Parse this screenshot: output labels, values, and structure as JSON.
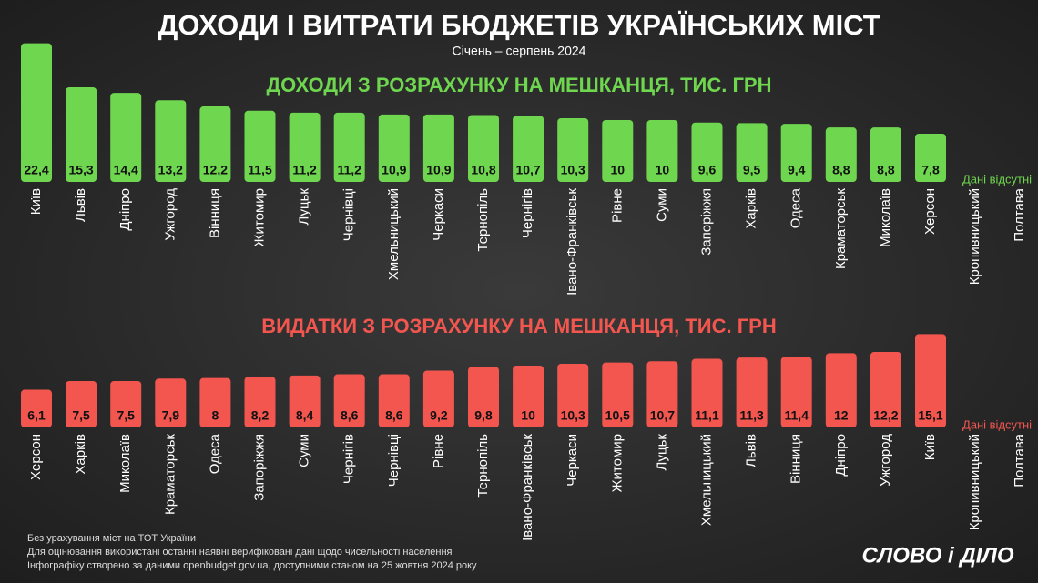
{
  "header": {
    "title": "ДОХОДИ І ВИТРАТИ БЮДЖЕТІВ УКРАЇНСЬКИХ МІСТ",
    "subtitle": "Січень – серпень 2024"
  },
  "chart_data": [
    {
      "type": "bar",
      "title": "ДОХОДИ З РОЗРАХУНКУ НА МЕШКАНЦЯ, ТИС. ГРН",
      "color": "#6fd64f",
      "categories": [
        "Київ",
        "Львів",
        "Дніпро",
        "Ужгород",
        "Вінниця",
        "Житомир",
        "Луцьк",
        "Чернівці",
        "Хмельницький",
        "Черкаси",
        "Тернопіль",
        "Чернігів",
        "Івано-Франківськ",
        "Рівне",
        "Суми",
        "Запоріжжя",
        "Харків",
        "Одеса",
        "Краматорськ",
        "Миколаїв",
        "Херсон",
        "Кропивницький",
        "Полтава"
      ],
      "values": [
        22.4,
        15.3,
        14.4,
        13.2,
        12.2,
        11.5,
        11.2,
        11.2,
        10.9,
        10.9,
        10.8,
        10.7,
        10.3,
        10,
        10,
        9.6,
        9.5,
        9.4,
        8.8,
        8.8,
        7.8,
        null,
        null
      ],
      "value_labels": [
        "22,4",
        "15,3",
        "14,4",
        "13,2",
        "12,2",
        "11,5",
        "11,2",
        "11,2",
        "10,9",
        "10,9",
        "10,8",
        "10,7",
        "10,3",
        "10",
        "10",
        "9,6",
        "9,5",
        "9,4",
        "8,8",
        "8,8",
        "7,8",
        null,
        null
      ],
      "annotation": "Дані відсутні"
    },
    {
      "type": "bar",
      "title": "ВИДАТКИ З РОЗРАХУНКУ НА МЕШКАНЦЯ, ТИС. ГРН",
      "color": "#f2564f",
      "categories": [
        "Херсон",
        "Харків",
        "Миколаїв",
        "Краматорськ",
        "Одеса",
        "Запоріжжя",
        "Суми",
        "Чернігів",
        "Чернівці",
        "Рівне",
        "Тернопіль",
        "Івано-Франківськ",
        "Черкаси",
        "Житомир",
        "Луцьк",
        "Хмельницький",
        "Львів",
        "Вінниця",
        "Дніпро",
        "Ужгород",
        "Київ",
        "Кропивницький",
        "Полтава"
      ],
      "values": [
        6.1,
        7.5,
        7.5,
        7.9,
        8,
        8.2,
        8.4,
        8.6,
        8.6,
        9.2,
        9.8,
        10,
        10.3,
        10.5,
        10.7,
        11.1,
        11.3,
        11.4,
        12,
        12.2,
        15.1,
        null,
        null
      ],
      "value_labels": [
        "6,1",
        "7,5",
        "7,5",
        "7,9",
        "8",
        "8,2",
        "8,4",
        "8,6",
        "8,6",
        "9,2",
        "9,8",
        "10",
        "10,3",
        "10,5",
        "10,7",
        "11,1",
        "11,3",
        "11,4",
        "12",
        "12,2",
        "15,1",
        null,
        null
      ],
      "annotation": "Дані відсутні"
    }
  ],
  "footer": {
    "notes": [
      "Без урахування міст на ТОТ України",
      "Для оцінювання використані останні наявні верифіковані дані щодо чисельності населення",
      "Інфографіку створено за даними openbudget.gov.ua, доступними станом на 25 жовтня 2024 року"
    ],
    "logo": "СЛОВО і ДІЛО"
  }
}
